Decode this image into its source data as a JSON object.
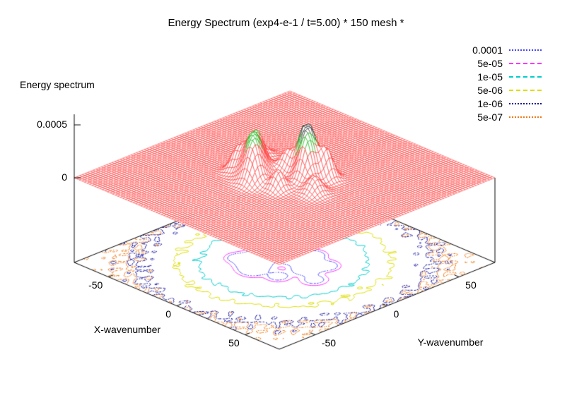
{
  "chart_data": {
    "type": "surface",
    "subtype": "3d-surface-with-contour-projection",
    "title": "Energy Spectrum (exp4-e-1 / t=5.00) * 150 mesh *",
    "z_label": "Energy spectrum",
    "x_label": "X-wavenumber",
    "y_label": "Y-wavenumber",
    "z_ticks": [
      "0.0005",
      "0"
    ],
    "x_ticks": [
      "-50",
      "0",
      "50"
    ],
    "y_ticks": [
      "-50",
      "0",
      "50"
    ],
    "x_range": [
      -75,
      75
    ],
    "y_range": [
      -75,
      75
    ],
    "z_range": [
      0,
      0.0005
    ],
    "mesh_size": 150,
    "surface_color": "#ff2222",
    "surface_peak_color": "#00b400",
    "surface_tip_color": "#202020",
    "axis_color": "#000000",
    "grid": false,
    "legend_position": "top-right",
    "contour_levels": [
      {
        "label": "0.0001",
        "value": 0.0001,
        "color": "#4444ff",
        "dash": "dotted"
      },
      {
        "label": "5e-05",
        "value": 5e-05,
        "color": "#ff33ff",
        "dash": "dashed"
      },
      {
        "label": "1e-05",
        "value": 1e-05,
        "color": "#00cccc",
        "dash": "dashed"
      },
      {
        "label": "5e-06",
        "value": 5e-06,
        "color": "#dddd00",
        "dash": "dashed"
      },
      {
        "label": "1e-06",
        "value": 1e-06,
        "color": "#000099",
        "dash": "dotted"
      },
      {
        "label": "5e-07",
        "value": 5e-07,
        "color": "#ee7711",
        "dash": "dotted"
      }
    ],
    "peaks": [
      {
        "x": -10,
        "y": -12,
        "amplitude": 0.00038,
        "sigma": 5
      },
      {
        "x": -16,
        "y": -4,
        "amplitude": 0.0003,
        "sigma": 4
      },
      {
        "x": -4,
        "y": -18,
        "amplitude": 0.00026,
        "sigma": 4
      },
      {
        "x": -21,
        "y": -13,
        "amplitude": 0.0002,
        "sigma": 3.5
      },
      {
        "x": 8,
        "y": 8,
        "amplitude": 0.00048,
        "sigma": 4
      },
      {
        "x": 14,
        "y": 2,
        "amplitude": 0.00036,
        "sigma": 4
      },
      {
        "x": 4,
        "y": 16,
        "amplitude": 0.0003,
        "sigma": 3.5
      },
      {
        "x": 18,
        "y": 12,
        "amplitude": 0.00028,
        "sigma": 3.5
      },
      {
        "x": -2,
        "y": 4,
        "amplitude": 0.0002,
        "sigma": 4
      },
      {
        "x": 26,
        "y": -4,
        "amplitude": 0.00016,
        "sigma": 4
      },
      {
        "x": -26,
        "y": 8,
        "amplitude": 0.00012,
        "sigma": 4
      },
      {
        "x": 10,
        "y": -14,
        "amplitude": 0.00018,
        "sigma": 3.5
      }
    ],
    "background": {
      "amplitude": 3.2e-05,
      "sigma": 28
    },
    "speckle_amplitude": 1.3e-06
  }
}
